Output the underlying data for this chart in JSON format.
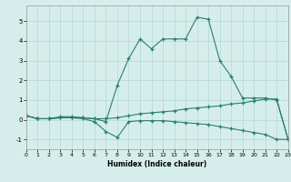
{
  "line_peak_x": [
    0,
    1,
    2,
    3,
    4,
    5,
    6,
    7,
    8,
    9,
    10,
    11,
    12,
    13,
    14,
    15,
    16,
    17,
    18,
    19,
    20,
    21,
    22,
    23
  ],
  "line_peak_y": [
    0.2,
    0.05,
    0.05,
    0.15,
    0.15,
    0.1,
    0.05,
    -0.1,
    1.75,
    3.1,
    4.1,
    3.6,
    4.1,
    4.1,
    4.1,
    5.2,
    5.1,
    3.0,
    2.2,
    1.1,
    1.1,
    1.1,
    1.0,
    -1.0
  ],
  "line_rise_x": [
    0,
    1,
    2,
    3,
    4,
    5,
    6,
    7,
    8,
    9,
    10,
    11,
    12,
    13,
    14,
    15,
    16,
    17,
    18,
    19,
    20,
    21,
    22,
    23
  ],
  "line_rise_y": [
    0.2,
    0.05,
    0.05,
    0.1,
    0.1,
    0.1,
    0.05,
    0.05,
    0.1,
    0.2,
    0.3,
    0.35,
    0.4,
    0.45,
    0.55,
    0.6,
    0.65,
    0.7,
    0.8,
    0.85,
    0.95,
    1.05,
    1.05,
    -1.0
  ],
  "line_dip_x": [
    0,
    1,
    2,
    3,
    4,
    5,
    6,
    7,
    8,
    9,
    10,
    11,
    12,
    13,
    14,
    15,
    16,
    17,
    18,
    19,
    20,
    21,
    22,
    23
  ],
  "line_dip_y": [
    0.2,
    0.05,
    0.05,
    0.1,
    0.1,
    0.05,
    -0.1,
    -0.6,
    -0.9,
    -0.1,
    -0.05,
    -0.05,
    -0.05,
    -0.1,
    -0.15,
    -0.2,
    -0.25,
    -0.35,
    -0.45,
    -0.55,
    -0.65,
    -0.75,
    -1.0,
    -1.0
  ],
  "color": "#2a7f6a",
  "bg_color": "#d6eeeb",
  "grid_color": "#b2d8d4",
  "xlabel": "Humidex (Indice chaleur)",
  "xlim": [
    0,
    23
  ],
  "ylim": [
    -1.5,
    5.8
  ],
  "yticks": [
    -1,
    0,
    1,
    2,
    3,
    4,
    5
  ],
  "xticks": [
    0,
    1,
    2,
    3,
    4,
    5,
    6,
    7,
    8,
    9,
    10,
    11,
    12,
    13,
    14,
    15,
    16,
    17,
    18,
    19,
    20,
    21,
    22,
    23
  ]
}
